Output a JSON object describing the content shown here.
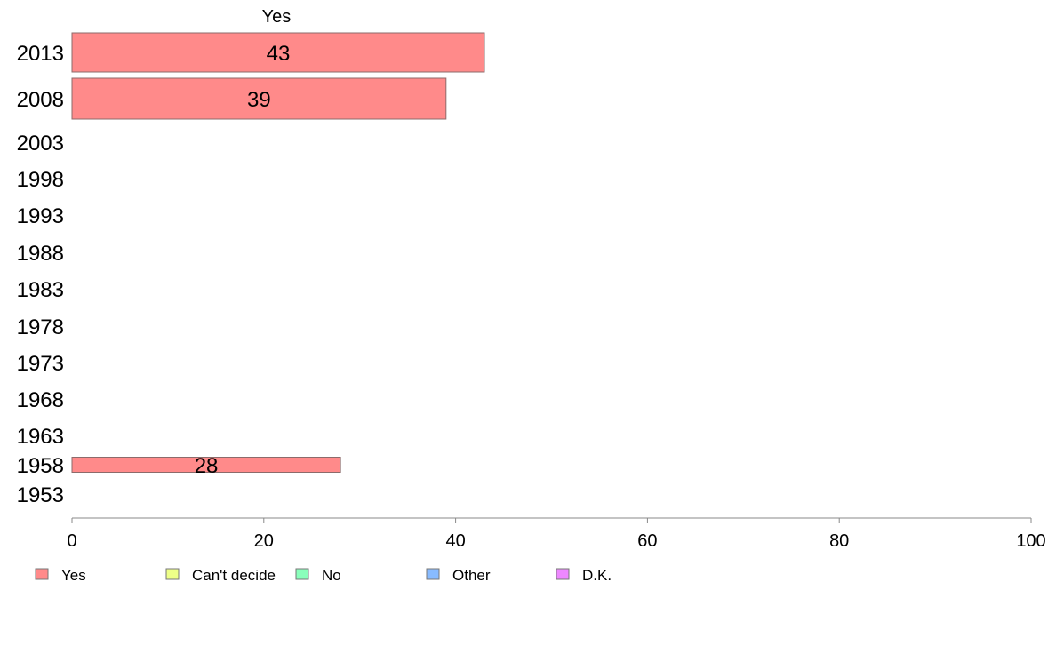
{
  "chart_data": {
    "type": "bar",
    "orientation": "horizontal",
    "column_title": "Yes",
    "categories": [
      "2013",
      "2008",
      "2003",
      "1998",
      "1993",
      "1988",
      "1983",
      "1978",
      "1973",
      "1968",
      "1963",
      "1958",
      "1953"
    ],
    "series": [
      {
        "name": "Yes",
        "color": "#ff8a8a",
        "values": [
          43,
          39,
          null,
          null,
          null,
          null,
          null,
          null,
          null,
          null,
          null,
          28,
          null
        ]
      }
    ],
    "data_labels": [
      "43",
      "39",
      "",
      "",
      "",
      "",
      "",
      "",
      "",
      "",
      "",
      "28",
      ""
    ],
    "xlim": [
      0,
      100
    ],
    "xticks": [
      0,
      20,
      40,
      60,
      80,
      100
    ],
    "grid": false,
    "legend": {
      "placement": "bottom",
      "items": [
        {
          "label": "Yes",
          "color": "#ff8a8a"
        },
        {
          "label": "Can't decide",
          "color": "#eeff88"
        },
        {
          "label": "No",
          "color": "#8affbb"
        },
        {
          "label": "Other",
          "color": "#88bbff"
        },
        {
          "label": "D.K.",
          "color": "#ee88ff"
        }
      ]
    }
  }
}
